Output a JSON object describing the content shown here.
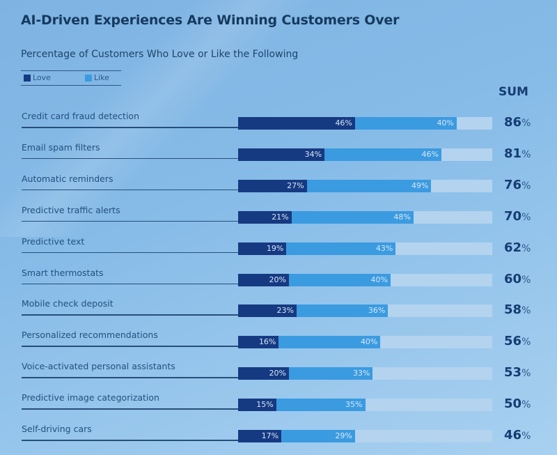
{
  "chart_data": {
    "type": "bar",
    "orientation": "horizontal",
    "stacked": true,
    "title": "AI-Driven Experiences Are Winning Customers Over",
    "subtitle": "Percentage of Customers Who Love or Like the Following",
    "xlim": [
      0,
      100
    ],
    "legend": {
      "position": "top-left",
      "entries": [
        "Love",
        "Like"
      ]
    },
    "sum_header": "SUM",
    "unit": "%",
    "colors": {
      "Love": "#163a82",
      "Like": "#3b9be0",
      "track": "#b3d3ef"
    },
    "categories": [
      "Credit card fraud detection",
      "Email spam filters",
      "Automatic reminders",
      "Predictive traffic alerts",
      "Predictive text",
      "Smart thermostats",
      "Mobile check deposit",
      "Personalized recommendations",
      "Voice-activated personal assistants",
      "Predictive image categorization",
      "Self-driving cars"
    ],
    "series": [
      {
        "name": "Love",
        "values": [
          46,
          34,
          27,
          21,
          19,
          20,
          23,
          16,
          20,
          15,
          17
        ]
      },
      {
        "name": "Like",
        "values": [
          40,
          46,
          49,
          48,
          43,
          40,
          36,
          40,
          33,
          35,
          29
        ]
      }
    ],
    "sums": [
      86,
      81,
      76,
      70,
      62,
      60,
      58,
      56,
      53,
      50,
      46
    ]
  }
}
